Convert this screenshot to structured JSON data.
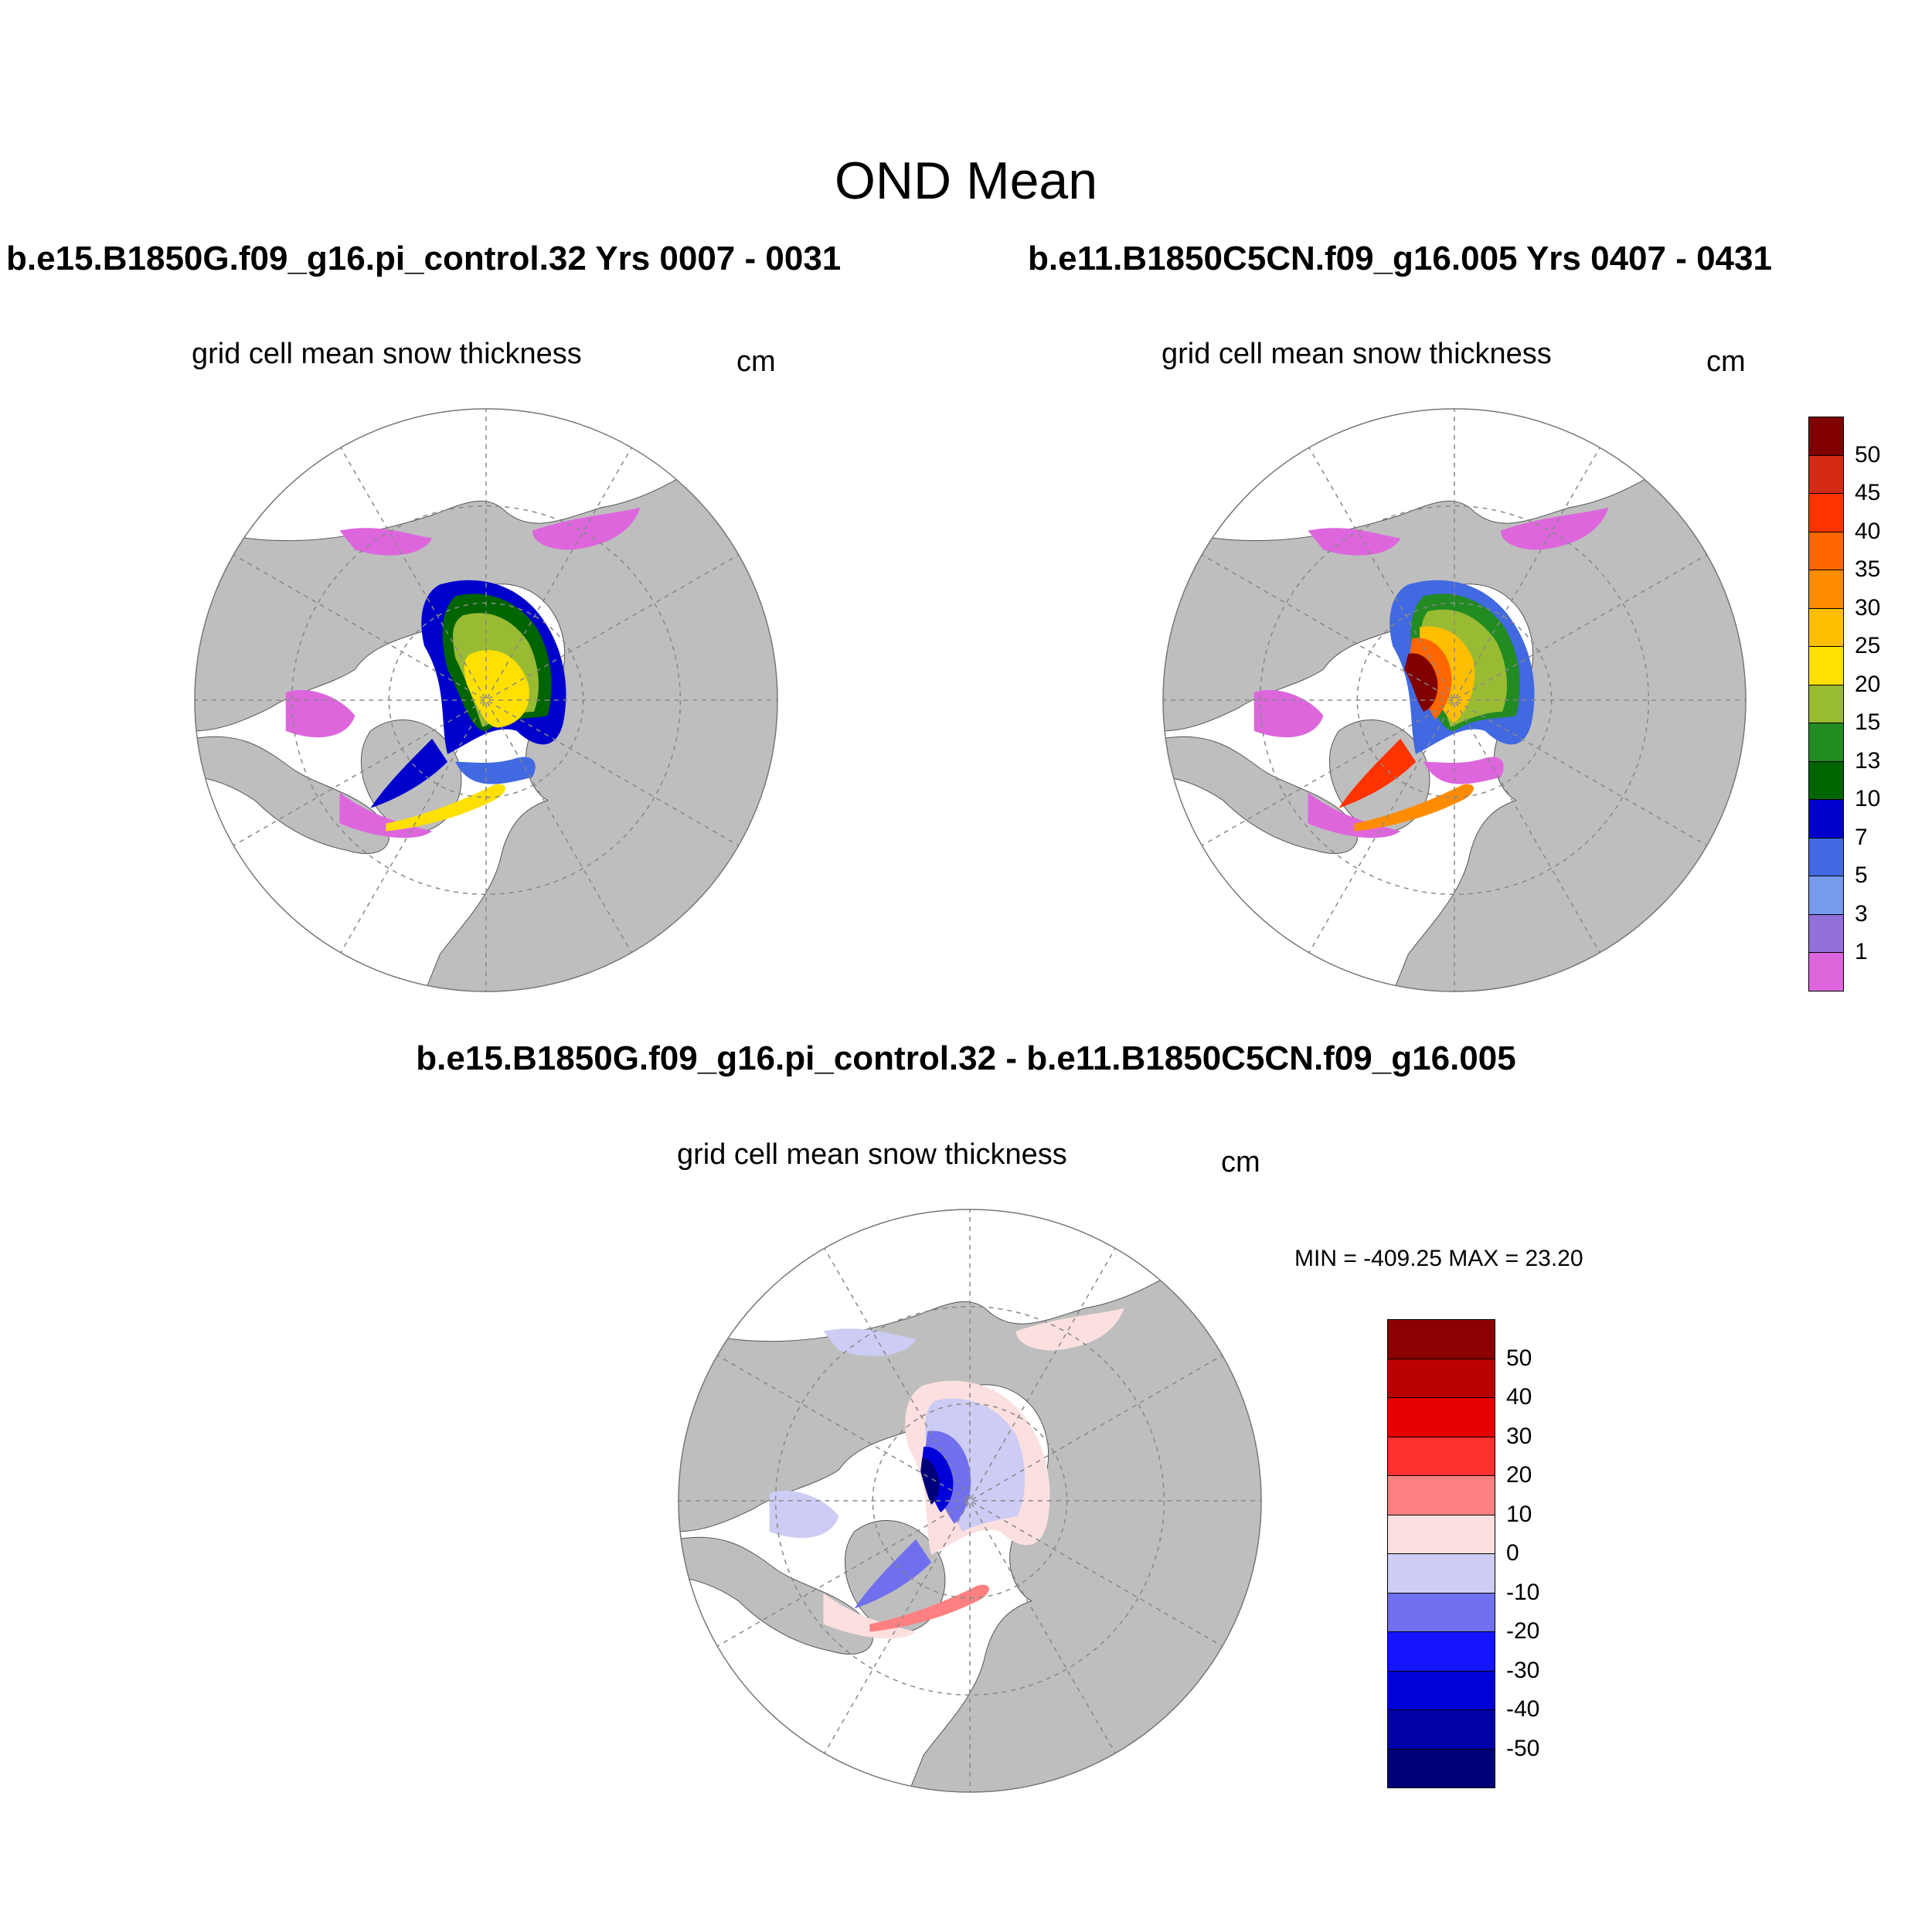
{
  "figure": {
    "title": "OND Mean",
    "panels": [
      {
        "title": "b.e15.B1850G.f09_g16.pi_control.32  Yrs 0007 - 0031",
        "variable": "grid cell mean snow thickness",
        "units": "cm"
      },
      {
        "title": "b.e11.B1850C5CN.f09_g16.005  Yrs 0407 - 0431",
        "variable": "grid cell mean snow thickness",
        "units": "cm"
      },
      {
        "title": "b.e15.B1850G.f09_g16.pi_control.32 - b.e11.B1850C5CN.f09_g16.005",
        "variable": "grid cell mean snow thickness",
        "units": "cm",
        "min_max": "MIN = -409.25 MAX =  23.20"
      }
    ]
  },
  "legend_abs": {
    "labels": [
      "50",
      "45",
      "40",
      "35",
      "30",
      "25",
      "20",
      "15",
      "13",
      "10",
      "7",
      "5",
      "3",
      "1"
    ],
    "colors": [
      "#800000",
      "#d42a14",
      "#ff3300",
      "#ff6600",
      "#ff8c00",
      "#ffbf00",
      "#ffe000",
      "#99bb33",
      "#228b22",
      "#006400",
      "#0000cd",
      "#4169e1",
      "#7799ee",
      "#9370db",
      "#dd66dd"
    ]
  },
  "legend_diff": {
    "labels": [
      "50",
      "40",
      "30",
      "20",
      "10",
      "0",
      "-10",
      "-20",
      "-30",
      "-40",
      "-50"
    ],
    "colors": [
      "#8b0000",
      "#bb0000",
      "#e60000",
      "#ff3030",
      "#ff8080",
      "#fce0e0",
      "#ccccf5",
      "#7070ee",
      "#1414ff",
      "#0000d8",
      "#0000a8",
      "#000078"
    ]
  },
  "colors": {
    "land": "#bebebe",
    "ocean": "#ffffff",
    "grid_line": "#888888"
  }
}
